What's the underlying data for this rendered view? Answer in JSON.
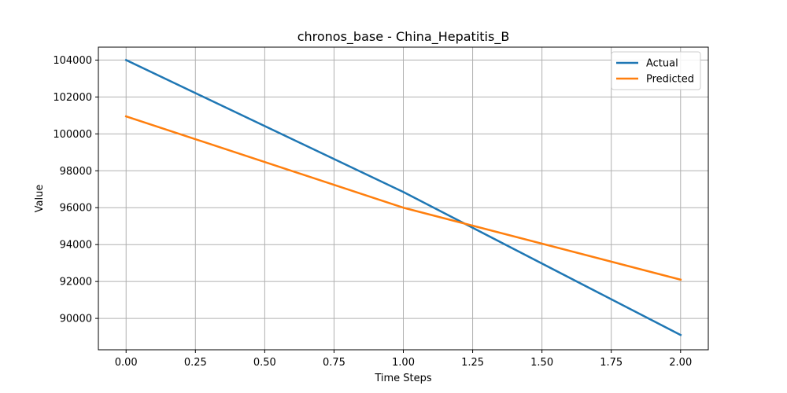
{
  "chart_data": {
    "type": "line",
    "title": "chronos_base - China_Hepatitis_B",
    "xlabel": "Time Steps",
    "ylabel": "Value",
    "x": [
      0,
      1,
      2
    ],
    "xlim": [
      -0.1,
      2.1
    ],
    "ylim": [
      88300,
      104700
    ],
    "xticks": [
      0.0,
      0.25,
      0.5,
      0.75,
      1.0,
      1.25,
      1.5,
      1.75,
      2.0
    ],
    "xtick_labels": [
      "0.00",
      "0.25",
      "0.50",
      "0.75",
      "1.00",
      "1.25",
      "1.50",
      "1.75",
      "2.00"
    ],
    "yticks": [
      90000,
      92000,
      94000,
      96000,
      98000,
      100000,
      102000,
      104000
    ],
    "ytick_labels": [
      "90000",
      "92000",
      "94000",
      "96000",
      "98000",
      "100000",
      "102000",
      "104000"
    ],
    "grid": true,
    "legend_position": "top-right",
    "series": [
      {
        "name": "Actual",
        "color": "#1f77b4",
        "values": [
          104000,
          96850,
          89100
        ]
      },
      {
        "name": "Predicted",
        "color": "#ff7f0e",
        "values": [
          100950,
          96000,
          92100
        ]
      }
    ]
  }
}
